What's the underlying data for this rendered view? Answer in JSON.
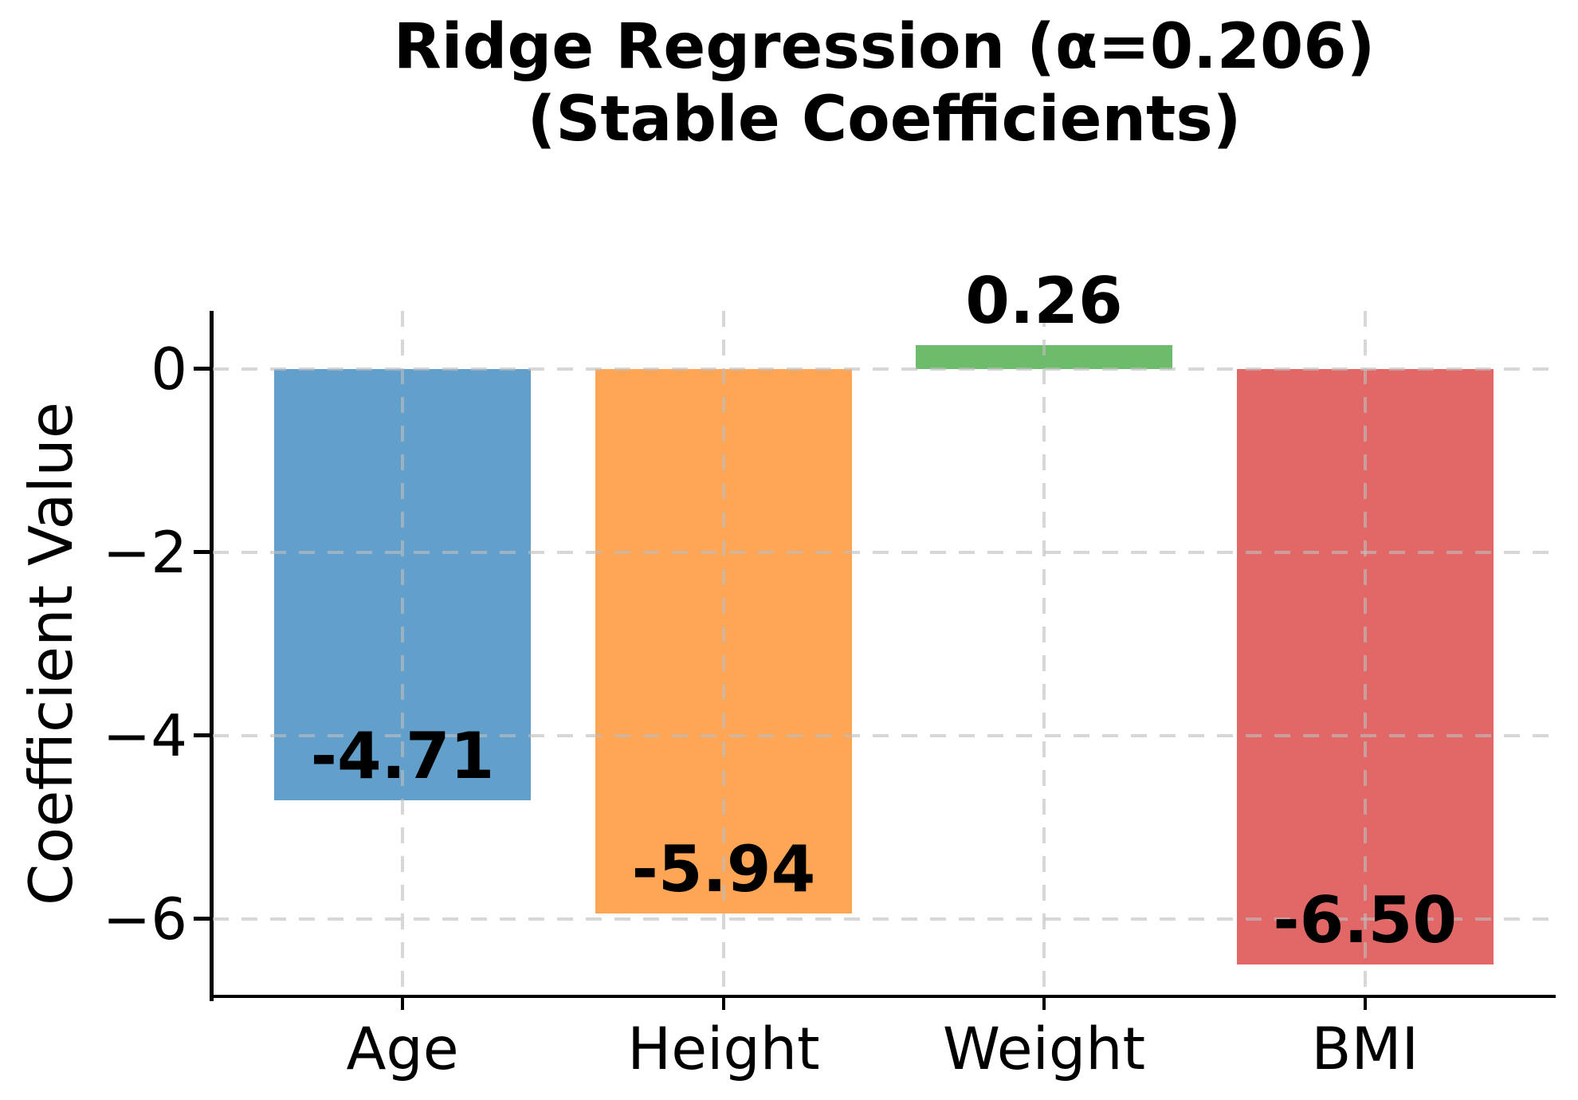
{
  "chart_data": {
    "type": "bar",
    "title_line1": "Ridge Regression (α=0.206)",
    "title_line2": "(Stable Coefficients)",
    "ylabel": "Coefficient Value",
    "xlabel": "",
    "categories": [
      "Age",
      "Height",
      "Weight",
      "BMI"
    ],
    "values": [
      -4.71,
      -5.94,
      0.26,
      -6.5
    ],
    "bar_labels": [
      "-4.71",
      "-5.94",
      "0.26",
      "-6.50"
    ],
    "bar_colors": [
      "#629fca",
      "#ffa556",
      "#6cbc6c",
      "#e26868"
    ],
    "yticks": [
      {
        "value": 0,
        "label": "0"
      },
      {
        "value": -2,
        "label": "−2"
      },
      {
        "value": -4,
        "label": "−4"
      },
      {
        "value": -6,
        "label": "−6"
      }
    ],
    "ylim": [
      -6.83,
      0.635
    ],
    "grid": "dashed",
    "grid_above_bars": true,
    "legend": "none",
    "background": "#ffffff",
    "text_color": "#000000"
  }
}
